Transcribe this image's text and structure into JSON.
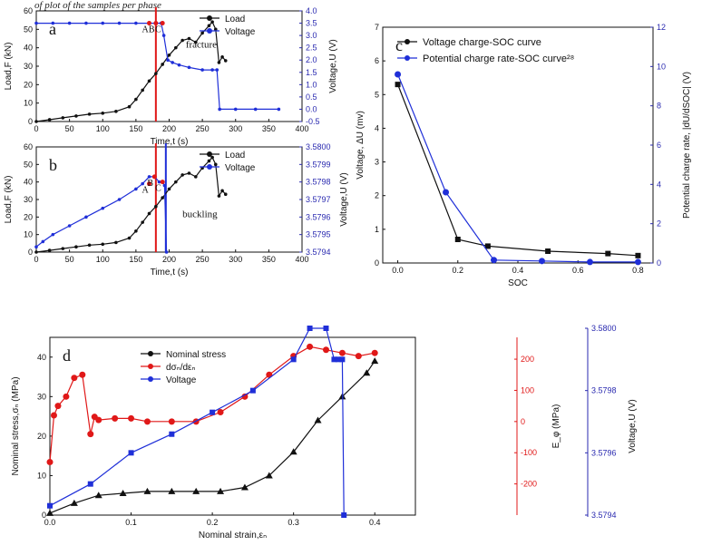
{
  "caption_text": "of plot of the samples per phase",
  "colors": {
    "black": "#111111",
    "blue": "#1f2fd8",
    "red": "#e01818",
    "axis_blue": "#2a2ab0"
  },
  "chart_data": [
    {
      "id": "a",
      "type": "line",
      "panel_label": "a",
      "xlabel": "Time,t (s)",
      "ylabel": "Load,F (kN)",
      "y2label": "Voltage,U (V)",
      "xlim": [
        0,
        400
      ],
      "ylim": [
        0,
        60
      ],
      "y2lim": [
        -0.5,
        4.0
      ],
      "xticks": [
        "0",
        "50",
        "100",
        "150",
        "200",
        "250",
        "300",
        "350",
        "400"
      ],
      "yticks": [
        "0",
        "10",
        "20",
        "30",
        "40",
        "50",
        "60"
      ],
      "y2ticks": [
        "-0.5",
        "0.0",
        "0.5",
        "1.0",
        "1.5",
        "2.0",
        "2.5",
        "3.0",
        "3.5",
        "4.0"
      ],
      "legend": [
        "Load",
        "Voltage"
      ],
      "annotations": [
        "A",
        "B",
        "C",
        "fracture"
      ],
      "series": [
        {
          "name": "Load",
          "axis": "left",
          "color": "#111111",
          "x": [
            0,
            20,
            40,
            60,
            80,
            100,
            120,
            140,
            150,
            160,
            170,
            180,
            190,
            200,
            210,
            220,
            230,
            240,
            250,
            260,
            265,
            270,
            275,
            280,
            285
          ],
          "y": [
            0,
            1,
            2,
            3,
            4,
            4.5,
            5.5,
            8,
            12,
            17,
            22,
            26,
            31,
            36,
            40,
            44,
            45,
            43,
            48,
            52,
            54,
            50,
            32,
            35,
            33
          ]
        },
        {
          "name": "Voltage",
          "axis": "right",
          "color": "#1f2fd8",
          "x": [
            0,
            25,
            50,
            75,
            100,
            125,
            150,
            170,
            180,
            188,
            192,
            198,
            205,
            215,
            230,
            250,
            265,
            272,
            276,
            300,
            330,
            365
          ],
          "y": [
            3.5,
            3.5,
            3.5,
            3.5,
            3.5,
            3.5,
            3.5,
            3.5,
            3.5,
            3.5,
            3.0,
            2.0,
            1.9,
            1.8,
            1.7,
            1.6,
            1.6,
            1.6,
            0.0,
            0.0,
            0.0,
            0.0
          ]
        }
      ],
      "marker_lines": [
        180
      ],
      "markers": [
        {
          "x": 170,
          "y": 3.5,
          "label": "A"
        },
        {
          "x": 180,
          "y": 3.5,
          "label": "B"
        },
        {
          "x": 190,
          "y": 3.5,
          "label": "C"
        }
      ]
    },
    {
      "id": "b",
      "type": "line",
      "panel_label": "b",
      "xlabel": "Time,t (s)",
      "ylabel": "Load,F (kN)",
      "y2label": "Voltage,U (V)",
      "xlim": [
        0,
        400
      ],
      "ylim": [
        0,
        60
      ],
      "y2lim": [
        3.5794,
        3.58
      ],
      "xticks": [
        "0",
        "50",
        "100",
        "150",
        "200",
        "250",
        "300",
        "350",
        "400"
      ],
      "yticks": [
        "0",
        "10",
        "20",
        "30",
        "40",
        "50",
        "60"
      ],
      "y2ticks": [
        "3.5794",
        "3.5795",
        "3.5796",
        "3.5797",
        "3.5798",
        "3.5799",
        "3.5800"
      ],
      "legend": [
        "Load",
        "Voltage"
      ],
      "annotations": [
        "A",
        "B",
        "C",
        "buckling"
      ],
      "series": [
        {
          "name": "Load",
          "axis": "left",
          "color": "#111111",
          "x": [
            0,
            20,
            40,
            60,
            80,
            100,
            120,
            140,
            150,
            160,
            170,
            180,
            190,
            200,
            210,
            220,
            230,
            240,
            250,
            260,
            265,
            270,
            275,
            280,
            285
          ],
          "y": [
            0,
            1,
            2,
            3,
            4,
            4.5,
            5.5,
            8,
            12,
            17,
            22,
            26,
            31,
            36,
            40,
            44,
            45,
            43,
            48,
            52,
            54,
            50,
            32,
            35,
            33
          ]
        },
        {
          "name": "Voltage",
          "axis": "right",
          "color": "#1f2fd8",
          "x": [
            0,
            10,
            25,
            50,
            75,
            100,
            125,
            150,
            160,
            170,
            178,
            185,
            190,
            193,
            196
          ],
          "y": [
            3.57943,
            3.57946,
            3.5795,
            3.57955,
            3.5796,
            3.57965,
            3.5797,
            3.57976,
            3.57979,
            3.57983,
            3.57983,
            3.5798,
            3.5798,
            3.57978,
            3.5794
          ]
        }
      ],
      "marker_lines": [
        180,
        195
      ],
      "markers": [
        {
          "x": 170,
          "y": 3.57979,
          "label": "A"
        },
        {
          "x": 178,
          "y": 3.57983,
          "label": "B"
        },
        {
          "x": 190,
          "y": 3.5798,
          "label": "C"
        }
      ]
    },
    {
      "id": "c",
      "type": "line",
      "panel_label": "c",
      "xlabel": "SOC",
      "ylabel": "Voltage, ΔU (mv)",
      "y2label": "Potential charge rate, |dU/dSOC| (V)",
      "xlim": [
        -0.05,
        0.85
      ],
      "ylim": [
        0,
        7
      ],
      "y2lim": [
        0,
        12
      ],
      "xticks": [
        "0.0",
        "0.2",
        "0.4",
        "0.6",
        "0.8"
      ],
      "yticks": [
        "0",
        "1",
        "2",
        "3",
        "4",
        "5",
        "6",
        "7"
      ],
      "y2ticks": [
        "0",
        "2",
        "4",
        "6",
        "8",
        "10",
        "12"
      ],
      "legend": [
        "Voltage charge-SOC curve",
        "Potential charge rate-SOC curve²⁸"
      ],
      "series": [
        {
          "name": "Voltage charge-SOC curve",
          "axis": "left",
          "color": "#111111",
          "marker": "square",
          "x": [
            0.0,
            0.2,
            0.3,
            0.5,
            0.7,
            0.8
          ],
          "y": [
            5.3,
            0.7,
            0.5,
            0.35,
            0.28,
            0.22
          ]
        },
        {
          "name": "Potential charge rate-SOC curve²⁸",
          "axis": "right",
          "color": "#1f2fd8",
          "marker": "circle",
          "x": [
            0.0,
            0.16,
            0.32,
            0.48,
            0.64,
            0.8
          ],
          "y": [
            9.6,
            3.6,
            0.15,
            0.1,
            0.05,
            0.05
          ]
        }
      ]
    },
    {
      "id": "d",
      "type": "line",
      "panel_label": "d",
      "xlabel": "Nominal strain,εₙ",
      "ylabel": "Nominal stress,σₙ (MPa)",
      "y2label": "E_φ (MPa)",
      "y3label": "Voltage,U (V)",
      "xlim": [
        0,
        0.45
      ],
      "ylim": [
        0,
        45
      ],
      "y2lim": [
        -300,
        270
      ],
      "y3lim": [
        3.5794,
        3.58
      ],
      "xticks": [
        "0.0",
        "0.1",
        "0.2",
        "0.3",
        "0.4"
      ],
      "yticks": [
        "0",
        "10",
        "20",
        "30",
        "40"
      ],
      "y2ticks": [
        "-200",
        "-100",
        "0",
        "100",
        "200"
      ],
      "y3ticks": [
        "3.5794",
        "3.5796",
        "3.5798",
        "3.5800"
      ],
      "legend": [
        "Nominal stress",
        "dσₙ/dεₙ",
        "Voltage"
      ],
      "series": [
        {
          "name": "Nominal stress",
          "axis": "left",
          "color": "#111111",
          "marker": "triangle",
          "x": [
            0,
            0.03,
            0.06,
            0.09,
            0.12,
            0.15,
            0.18,
            0.21,
            0.24,
            0.27,
            0.3,
            0.33,
            0.36,
            0.39,
            0.4
          ],
          "y": [
            0.5,
            3,
            5,
            5.5,
            6,
            6,
            6,
            6,
            7,
            10,
            16,
            24,
            30,
            36,
            39
          ]
        },
        {
          "name": "dσₙ/dεₙ",
          "axis": "right",
          "color": "#e01818",
          "marker": "circle",
          "x": [
            0,
            0.005,
            0.01,
            0.02,
            0.03,
            0.04,
            0.05,
            0.055,
            0.06,
            0.08,
            0.1,
            0.12,
            0.15,
            0.18,
            0.21,
            0.24,
            0.27,
            0.3,
            0.32,
            0.34,
            0.36,
            0.38,
            0.4
          ],
          "y": [
            -130,
            20,
            50,
            80,
            140,
            150,
            -40,
            15,
            5,
            10,
            10,
            0,
            0,
            0,
            30,
            80,
            150,
            210,
            240,
            230,
            220,
            210,
            220
          ]
        },
        {
          "name": "Voltage",
          "axis": "right2",
          "color": "#1f2fd8",
          "marker": "square",
          "x": [
            0,
            0.05,
            0.1,
            0.15,
            0.2,
            0.25,
            0.3,
            0.32,
            0.34,
            0.35,
            0.355,
            0.36,
            0.362
          ],
          "y": [
            3.57943,
            3.5795,
            3.5796,
            3.57966,
            3.57973,
            3.5798,
            3.5799,
            3.58,
            3.58,
            3.5799,
            3.5799,
            3.5799,
            3.5794
          ]
        }
      ]
    }
  ]
}
